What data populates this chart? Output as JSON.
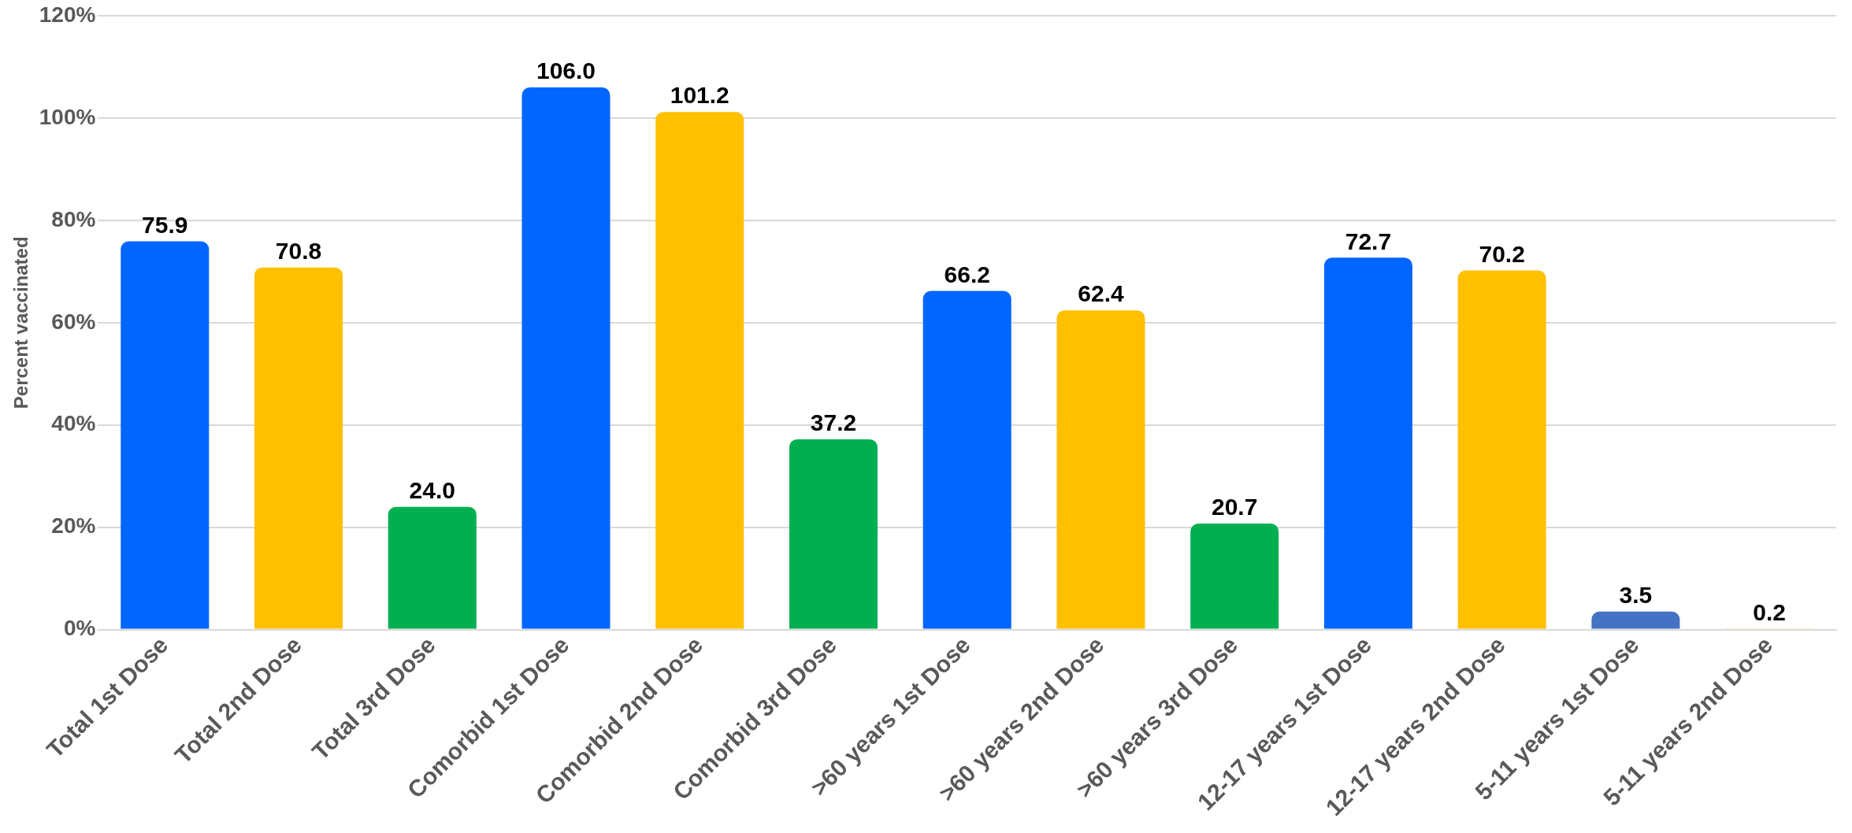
{
  "chart_data": {
    "type": "bar",
    "ylabel": "Percent vaccinated",
    "categories": [
      "Total 1st Dose",
      "Total 2nd Dose",
      "Total 3rd Dose",
      "Comorbid 1st Dose",
      "Comorbid 2nd Dose",
      "Comorbid 3rd Dose",
      ">60 years 1st Dose",
      ">60 years 2nd Dose",
      ">60 years 3rd Dose",
      "12-17 years 1st Dose",
      "12-17 years 2nd Dose",
      "5-11 years 1st Dose",
      "5-11 years 2nd Dose"
    ],
    "values": [
      75.9,
      70.8,
      24.0,
      106.0,
      101.2,
      37.2,
      66.2,
      62.4,
      20.7,
      72.7,
      70.2,
      3.5,
      0.2
    ],
    "value_labels": [
      "75.9",
      "70.8",
      "24.0",
      "106.0",
      "101.2",
      "37.2",
      "66.2",
      "62.4",
      "20.7",
      "72.7",
      "70.2",
      "3.5",
      "0.2"
    ],
    "colors": [
      "#0066ff",
      "#ffc000",
      "#00b050",
      "#0066ff",
      "#ffc000",
      "#00b050",
      "#0066ff",
      "#ffc000",
      "#00b050",
      "#0066ff",
      "#ffc000",
      "#4472c4",
      "#ffc000"
    ],
    "ylim": [
      0,
      120
    ],
    "yticks": [
      {
        "value": 0,
        "label": "0%"
      },
      {
        "value": 20,
        "label": "20%"
      },
      {
        "value": 40,
        "label": "40%"
      },
      {
        "value": 60,
        "label": "60%"
      },
      {
        "value": 80,
        "label": "80%"
      },
      {
        "value": 100,
        "label": "100%"
      },
      {
        "value": 120,
        "label": "120%"
      }
    ],
    "grid": "y",
    "legend": false
  }
}
